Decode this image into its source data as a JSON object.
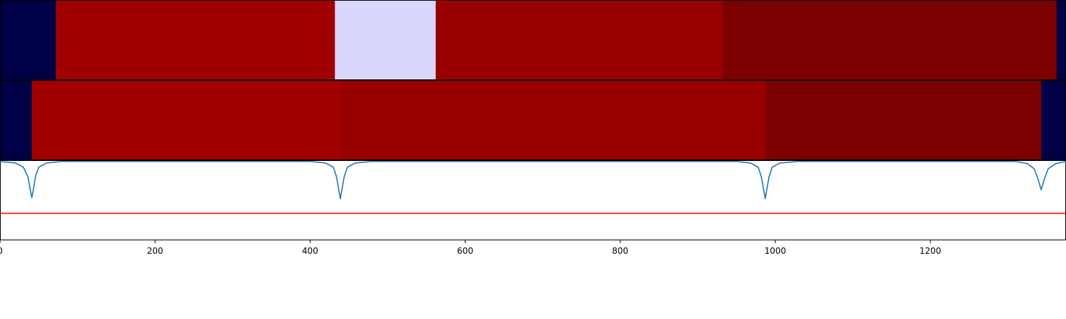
{
  "chart_data": [
    {
      "type": "heatmap",
      "name": "segment-row-1",
      "xlim": [
        0,
        1375
      ],
      "segments": [
        {
          "start": 0,
          "end": 72,
          "color": "#000047"
        },
        {
          "start": 72,
          "end": 432,
          "color": "#a10000"
        },
        {
          "start": 432,
          "end": 562,
          "color": "#d8d8ff"
        },
        {
          "start": 562,
          "end": 932,
          "color": "#990000"
        },
        {
          "start": 932,
          "end": 1363,
          "color": "#7c0000"
        },
        {
          "start": 1363,
          "end": 1375,
          "color": "#000047"
        }
      ]
    },
    {
      "type": "heatmap",
      "name": "segment-row-2",
      "xlim": [
        0,
        1375
      ],
      "segments": [
        {
          "start": 0,
          "end": 41,
          "color": "#000047"
        },
        {
          "start": 41,
          "end": 440,
          "color": "#a10000"
        },
        {
          "start": 440,
          "end": 988,
          "color": "#990000"
        },
        {
          "start": 988,
          "end": 1343,
          "color": "#7c0000"
        },
        {
          "start": 1343,
          "end": 1375,
          "color": "#000047"
        }
      ]
    },
    {
      "type": "line",
      "xlim": [
        0,
        1375
      ],
      "ylim": [
        -1.5,
        0
      ],
      "xticks": [
        0,
        200,
        400,
        600,
        800,
        1000,
        1200
      ],
      "series": [
        {
          "color": "#1f77b4",
          "points": [
            [
              0,
              -0.01
            ],
            [
              20,
              -0.04
            ],
            [
              30,
              -0.12
            ],
            [
              36,
              -0.3
            ],
            [
              39,
              -0.55
            ],
            [
              41,
              -0.7
            ],
            [
              43,
              -0.55
            ],
            [
              46,
              -0.28
            ],
            [
              50,
              -0.12
            ],
            [
              60,
              -0.04
            ],
            [
              80,
              -0.01
            ],
            [
              400,
              -0.01
            ],
            [
              420,
              -0.04
            ],
            [
              430,
              -0.12
            ],
            [
              434,
              -0.3
            ],
            [
              437,
              -0.55
            ],
            [
              439,
              -0.72
            ],
            [
              441,
              -0.55
            ],
            [
              444,
              -0.3
            ],
            [
              448,
              -0.12
            ],
            [
              458,
              -0.04
            ],
            [
              480,
              -0.01
            ],
            [
              950,
              -0.01
            ],
            [
              968,
              -0.04
            ],
            [
              978,
              -0.12
            ],
            [
              982,
              -0.3
            ],
            [
              985,
              -0.55
            ],
            [
              987,
              -0.72
            ],
            [
              989,
              -0.55
            ],
            [
              992,
              -0.3
            ],
            [
              996,
              -0.12
            ],
            [
              1006,
              -0.04
            ],
            [
              1030,
              -0.01
            ],
            [
              1310,
              -0.01
            ],
            [
              1325,
              -0.05
            ],
            [
              1334,
              -0.15
            ],
            [
              1339,
              -0.35
            ],
            [
              1343,
              -0.55
            ],
            [
              1347,
              -0.35
            ],
            [
              1352,
              -0.15
            ],
            [
              1362,
              -0.05
            ],
            [
              1375,
              -0.01
            ]
          ]
        },
        {
          "color": "#ff0000",
          "points": [
            [
              0,
              -1.0
            ],
            [
              1375,
              -1.0
            ]
          ]
        }
      ]
    }
  ]
}
